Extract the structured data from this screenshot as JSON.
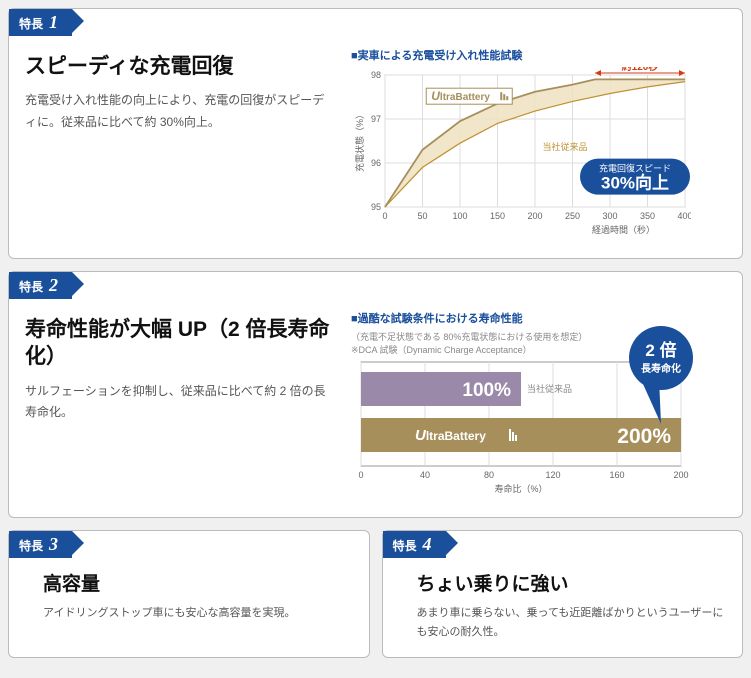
{
  "features": [
    {
      "badge_label": "特長",
      "badge_num": "1",
      "title": "スピーディな充電回復",
      "desc": "充電受け入れ性能の向上により、充電の回復がスピーディに。従来品に比べて約 30%向上。"
    },
    {
      "badge_label": "特長",
      "badge_num": "2",
      "title": "寿命性能が大幅 UP（2 倍長寿命化）",
      "desc": "サルフェーションを抑制し、従来品に比べて約 2 倍の長寿命化。"
    },
    {
      "badge_label": "特長",
      "badge_num": "3",
      "title": "高容量",
      "desc": "アイドリングストップ車にも安心な高容量を実現。"
    },
    {
      "badge_label": "特長",
      "badge_num": "4",
      "title": "ちょい乗りに強い",
      "desc": "あまり車に乗らない、乗っても近距離ばかりというユーザーにも安心の耐久性。"
    }
  ],
  "chart1": {
    "title": "■実車による充電受け入れ性能試験",
    "time_label": "約120秒",
    "callout_line1": "充電回復スピード",
    "callout_line2": "30%向上",
    "ylabel": "充電状態（%）",
    "xlabel": "経過時間（秒）",
    "conventional_label": "当社従来品",
    "ultra_label_u": "U",
    "ultra_label_rest": "ltraBattery",
    "ylim": [
      95,
      98
    ],
    "yticks": [
      95,
      96,
      97,
      98
    ],
    "xlim": [
      0,
      400
    ],
    "xticks": [
      0,
      50,
      100,
      150,
      200,
      250,
      300,
      350,
      400
    ],
    "ultra_color": "#a68f5b",
    "conv_color": "#c09030",
    "bg_color": "#ffffff",
    "grid_color": "#dddddd",
    "callout_bg": "#1a4f9c",
    "time_color": "#d43b12",
    "ultra_points": [
      [
        0,
        95
      ],
      [
        50,
        96.3
      ],
      [
        100,
        96.95
      ],
      [
        150,
        97.35
      ],
      [
        200,
        97.62
      ],
      [
        250,
        97.78
      ],
      [
        280,
        97.9
      ],
      [
        400,
        97.9
      ]
    ],
    "conv_points": [
      [
        0,
        95
      ],
      [
        50,
        95.9
      ],
      [
        100,
        96.45
      ],
      [
        150,
        96.9
      ],
      [
        200,
        97.18
      ],
      [
        250,
        97.4
      ],
      [
        300,
        97.58
      ],
      [
        350,
        97.73
      ],
      [
        400,
        97.85
      ]
    ]
  },
  "chart2": {
    "title": "■過酷な試験条件における寿命性能",
    "sub1": "（充電不足状態である 80%充電状態における使用を想定）",
    "sub2": "※DCA 試験（Dynamic Charge Acceptance）",
    "circle_line1": "2 倍",
    "circle_line2": "長寿命化",
    "conventional_label": "当社従来品",
    "bar1_label": "100%",
    "bar2_label": "200%",
    "ultra_label_u": "U",
    "ultra_label_rest": "ltraBattery",
    "xlabel": "寿命比（%）",
    "xlim": [
      0,
      200
    ],
    "xticks": [
      0,
      40,
      80,
      120,
      160,
      200
    ],
    "bar1_value": 100,
    "bar2_value": 200,
    "bar1_color": "#9a89a8",
    "bar2_color": "#a68f5b",
    "circle_bg": "#1a4f9c",
    "grid_color": "#dddddd"
  }
}
